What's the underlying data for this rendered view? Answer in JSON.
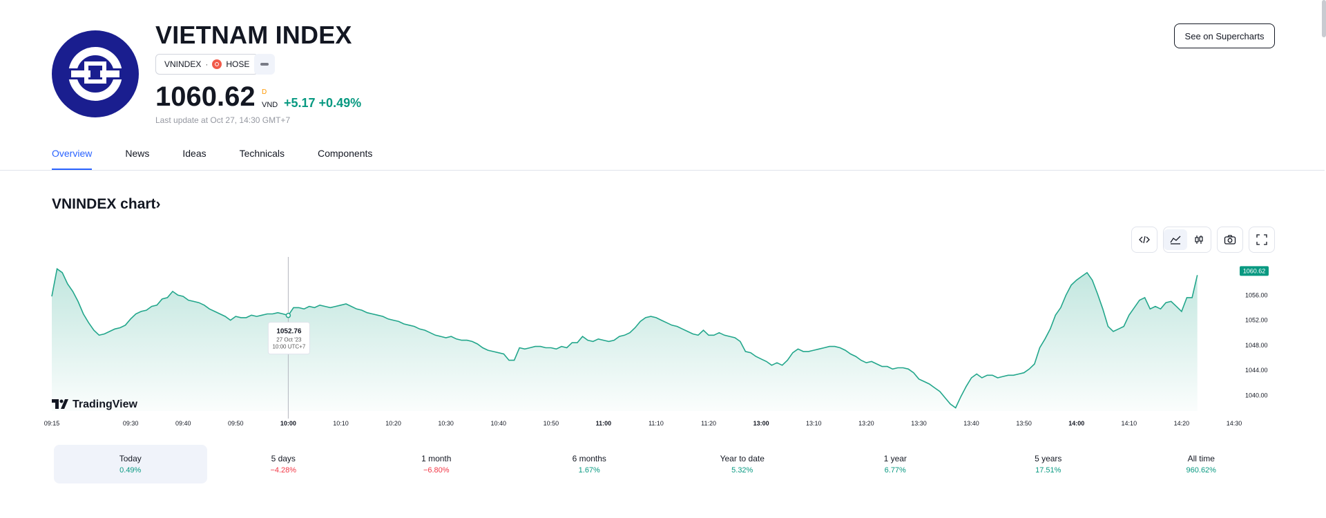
{
  "header": {
    "title": "VIETNAM INDEX",
    "symbol": "VNINDEX",
    "separator": "·",
    "exchange": "HOSE",
    "price": "1060.62",
    "price_flag": "D",
    "currency": "VND",
    "change": "+5.17 +0.49%",
    "last_update": "Last update at Oct 27, 14:30 GMT+7",
    "supercharts_label": "See on Supercharts"
  },
  "tabs": [
    {
      "label": "Overview",
      "active": true
    },
    {
      "label": "News"
    },
    {
      "label": "Ideas"
    },
    {
      "label": "Technicals"
    },
    {
      "label": "Components"
    }
  ],
  "chart_section": {
    "title": "VNINDEX chart",
    "chevron": "›",
    "tradingview_label": "TradingView",
    "tooltip": {
      "value": "1052.76",
      "date": "27 Oct '23",
      "time": "10:00 UTC+7"
    }
  },
  "chart_data": {
    "type": "area",
    "y_ticks": [
      1040,
      1044,
      1048,
      1052,
      1056
    ],
    "y_tick_labels": [
      "1040.00",
      "1044.00",
      "1048.00",
      "1052.00",
      "1056.00"
    ],
    "ylim": [
      1037.5,
      1061
    ],
    "last_label": "1060.62",
    "x_ticks": [
      {
        "label": "09:15",
        "t": 0
      },
      {
        "label": "09:30",
        "t": 15
      },
      {
        "label": "09:40",
        "t": 25
      },
      {
        "label": "09:50",
        "t": 35
      },
      {
        "label": "10:00",
        "t": 45,
        "bold": true
      },
      {
        "label": "10:10",
        "t": 55
      },
      {
        "label": "10:20",
        "t": 65
      },
      {
        "label": "10:30",
        "t": 75
      },
      {
        "label": "10:40",
        "t": 85
      },
      {
        "label": "10:50",
        "t": 95
      },
      {
        "label": "11:00",
        "t": 105,
        "bold": true
      },
      {
        "label": "11:10",
        "t": 115
      },
      {
        "label": "11:20",
        "t": 125
      },
      {
        "label": "13:00",
        "t": 135,
        "bold": true
      },
      {
        "label": "13:10",
        "t": 145
      },
      {
        "label": "13:20",
        "t": 155
      },
      {
        "label": "13:30",
        "t": 165
      },
      {
        "label": "13:40",
        "t": 175
      },
      {
        "label": "13:50",
        "t": 185
      },
      {
        "label": "14:00",
        "t": 195,
        "bold": true
      },
      {
        "label": "14:10",
        "t": 205
      },
      {
        "label": "14:20",
        "t": 215
      },
      {
        "label": "14:30",
        "t": 225
      }
    ],
    "points": [
      [
        0,
        1055.8
      ],
      [
        1,
        1060.2
      ],
      [
        2,
        1059.6
      ],
      [
        3,
        1057.8
      ],
      [
        4,
        1056.6
      ],
      [
        5,
        1055.0
      ],
      [
        6,
        1053.0
      ],
      [
        7,
        1051.6
      ],
      [
        8,
        1050.4
      ],
      [
        9,
        1049.6
      ],
      [
        10,
        1049.8
      ],
      [
        11,
        1050.2
      ],
      [
        12,
        1050.6
      ],
      [
        13,
        1050.8
      ],
      [
        14,
        1051.2
      ],
      [
        15,
        1052.2
      ],
      [
        16,
        1053.0
      ],
      [
        17,
        1053.4
      ],
      [
        18,
        1053.6
      ],
      [
        19,
        1054.2
      ],
      [
        20,
        1054.4
      ],
      [
        21,
        1055.4
      ],
      [
        22,
        1055.6
      ],
      [
        23,
        1056.6
      ],
      [
        24,
        1056.0
      ],
      [
        25,
        1055.8
      ],
      [
        26,
        1055.2
      ],
      [
        27,
        1055.0
      ],
      [
        28,
        1054.8
      ],
      [
        29,
        1054.4
      ],
      [
        30,
        1053.8
      ],
      [
        31,
        1053.4
      ],
      [
        32,
        1053.0
      ],
      [
        33,
        1052.6
      ],
      [
        34,
        1052.0
      ],
      [
        35,
        1052.6
      ],
      [
        36,
        1052.4
      ],
      [
        37,
        1052.4
      ],
      [
        38,
        1052.8
      ],
      [
        39,
        1052.6
      ],
      [
        40,
        1052.8
      ],
      [
        41,
        1053.0
      ],
      [
        42,
        1053.0
      ],
      [
        43,
        1053.2
      ],
      [
        44,
        1053.0
      ],
      [
        45,
        1052.76
      ],
      [
        46,
        1054.0
      ],
      [
        47,
        1054.0
      ],
      [
        48,
        1053.8
      ],
      [
        49,
        1054.2
      ],
      [
        50,
        1054.0
      ],
      [
        51,
        1054.4
      ],
      [
        52,
        1054.2
      ],
      [
        53,
        1054.0
      ],
      [
        54,
        1054.2
      ],
      [
        55,
        1054.4
      ],
      [
        56,
        1054.6
      ],
      [
        57,
        1054.2
      ],
      [
        58,
        1053.8
      ],
      [
        59,
        1053.6
      ],
      [
        60,
        1053.2
      ],
      [
        61,
        1053.0
      ],
      [
        62,
        1052.8
      ],
      [
        63,
        1052.6
      ],
      [
        64,
        1052.2
      ],
      [
        65,
        1052.0
      ],
      [
        66,
        1051.8
      ],
      [
        67,
        1051.4
      ],
      [
        68,
        1051.2
      ],
      [
        69,
        1051.0
      ],
      [
        70,
        1050.6
      ],
      [
        71,
        1050.4
      ],
      [
        72,
        1050.0
      ],
      [
        73,
        1049.6
      ],
      [
        74,
        1049.4
      ],
      [
        75,
        1049.2
      ],
      [
        76,
        1049.4
      ],
      [
        77,
        1049.0
      ],
      [
        78,
        1048.8
      ],
      [
        79,
        1048.8
      ],
      [
        80,
        1048.6
      ],
      [
        81,
        1048.2
      ],
      [
        82,
        1047.6
      ],
      [
        83,
        1047.2
      ],
      [
        84,
        1047.0
      ],
      [
        85,
        1046.8
      ],
      [
        86,
        1046.6
      ],
      [
        87,
        1045.6
      ],
      [
        88,
        1045.6
      ],
      [
        89,
        1047.6
      ],
      [
        90,
        1047.4
      ],
      [
        91,
        1047.6
      ],
      [
        92,
        1047.8
      ],
      [
        93,
        1047.8
      ],
      [
        94,
        1047.6
      ],
      [
        95,
        1047.6
      ],
      [
        96,
        1047.4
      ],
      [
        97,
        1047.8
      ],
      [
        98,
        1047.6
      ],
      [
        99,
        1048.4
      ],
      [
        100,
        1048.4
      ],
      [
        101,
        1049.4
      ],
      [
        102,
        1048.8
      ],
      [
        103,
        1048.6
      ],
      [
        104,
        1049.0
      ],
      [
        105,
        1048.8
      ],
      [
        106,
        1048.6
      ],
      [
        107,
        1048.8
      ],
      [
        108,
        1049.4
      ],
      [
        109,
        1049.6
      ],
      [
        110,
        1050.0
      ],
      [
        111,
        1050.8
      ],
      [
        112,
        1051.8
      ],
      [
        113,
        1052.4
      ],
      [
        114,
        1052.6
      ],
      [
        115,
        1052.4
      ],
      [
        116,
        1052.0
      ],
      [
        117,
        1051.6
      ],
      [
        118,
        1051.2
      ],
      [
        119,
        1051.0
      ],
      [
        120,
        1050.6
      ],
      [
        121,
        1050.2
      ],
      [
        122,
        1049.8
      ],
      [
        123,
        1049.6
      ],
      [
        124,
        1050.4
      ],
      [
        125,
        1049.6
      ],
      [
        126,
        1049.6
      ],
      [
        127,
        1050.0
      ],
      [
        128,
        1049.6
      ],
      [
        129,
        1049.4
      ],
      [
        130,
        1049.2
      ],
      [
        131,
        1048.6
      ],
      [
        132,
        1047.0
      ],
      [
        133,
        1046.8
      ],
      [
        134,
        1046.2
      ],
      [
        135,
        1045.8
      ],
      [
        136,
        1045.4
      ],
      [
        137,
        1044.8
      ],
      [
        138,
        1045.2
      ],
      [
        139,
        1044.8
      ],
      [
        140,
        1045.6
      ],
      [
        141,
        1046.8
      ],
      [
        142,
        1047.4
      ],
      [
        143,
        1047.0
      ],
      [
        144,
        1047.0
      ],
      [
        145,
        1047.2
      ],
      [
        146,
        1047.4
      ],
      [
        147,
        1047.6
      ],
      [
        148,
        1047.8
      ],
      [
        149,
        1047.8
      ],
      [
        150,
        1047.6
      ],
      [
        151,
        1047.2
      ],
      [
        152,
        1046.6
      ],
      [
        153,
        1046.2
      ],
      [
        154,
        1045.6
      ],
      [
        155,
        1045.2
      ],
      [
        156,
        1045.4
      ],
      [
        157,
        1045.0
      ],
      [
        158,
        1044.6
      ],
      [
        159,
        1044.6
      ],
      [
        160,
        1044.2
      ],
      [
        161,
        1044.4
      ],
      [
        162,
        1044.4
      ],
      [
        163,
        1044.2
      ],
      [
        164,
        1043.6
      ],
      [
        165,
        1042.6
      ],
      [
        166,
        1042.2
      ],
      [
        167,
        1041.8
      ],
      [
        168,
        1041.2
      ],
      [
        169,
        1040.6
      ],
      [
        170,
        1039.6
      ],
      [
        171,
        1038.6
      ],
      [
        172,
        1038.0
      ],
      [
        173,
        1039.8
      ],
      [
        174,
        1041.4
      ],
      [
        175,
        1042.8
      ],
      [
        176,
        1043.4
      ],
      [
        177,
        1042.8
      ],
      [
        178,
        1043.2
      ],
      [
        179,
        1043.2
      ],
      [
        180,
        1042.8
      ],
      [
        181,
        1043.0
      ],
      [
        182,
        1043.2
      ],
      [
        183,
        1043.2
      ],
      [
        184,
        1043.4
      ],
      [
        185,
        1043.6
      ],
      [
        186,
        1044.2
      ],
      [
        187,
        1045.0
      ],
      [
        188,
        1047.6
      ],
      [
        189,
        1049.0
      ],
      [
        190,
        1050.6
      ],
      [
        191,
        1052.8
      ],
      [
        192,
        1054.0
      ],
      [
        193,
        1056.0
      ],
      [
        194,
        1057.6
      ],
      [
        195,
        1058.4
      ],
      [
        196,
        1059.0
      ],
      [
        197,
        1059.6
      ],
      [
        198,
        1058.4
      ],
      [
        199,
        1056.2
      ],
      [
        200,
        1053.8
      ],
      [
        201,
        1051.0
      ],
      [
        202,
        1050.2
      ],
      [
        203,
        1050.6
      ],
      [
        204,
        1051.0
      ],
      [
        205,
        1052.8
      ],
      [
        206,
        1054.0
      ],
      [
        207,
        1055.2
      ],
      [
        208,
        1055.6
      ],
      [
        209,
        1053.8
      ],
      [
        210,
        1054.2
      ],
      [
        211,
        1053.8
      ],
      [
        212,
        1054.8
      ],
      [
        213,
        1055.0
      ],
      [
        214,
        1054.2
      ],
      [
        215,
        1053.4
      ],
      [
        216,
        1055.6
      ],
      [
        217,
        1055.6
      ],
      [
        218,
        1059.2
      ]
    ]
  },
  "periods": [
    {
      "label": "Today",
      "value": "0.49%",
      "dir": "pos",
      "active": true
    },
    {
      "label": "5 days",
      "value": "−4.28%",
      "dir": "neg"
    },
    {
      "label": "1 month",
      "value": "−6.80%",
      "dir": "neg"
    },
    {
      "label": "6 months",
      "value": "1.67%",
      "dir": "pos"
    },
    {
      "label": "Year to date",
      "value": "5.32%",
      "dir": "pos"
    },
    {
      "label": "1 year",
      "value": "6.77%",
      "dir": "pos"
    },
    {
      "label": "5 years",
      "value": "17.51%",
      "dir": "pos"
    },
    {
      "label": "All time",
      "value": "960.62%",
      "dir": "pos"
    }
  ],
  "colors": {
    "accent": "#2962ff",
    "line": "#22a68b",
    "up": "#089981",
    "down": "#f23645",
    "logo_bg": "#1a1e8f"
  }
}
